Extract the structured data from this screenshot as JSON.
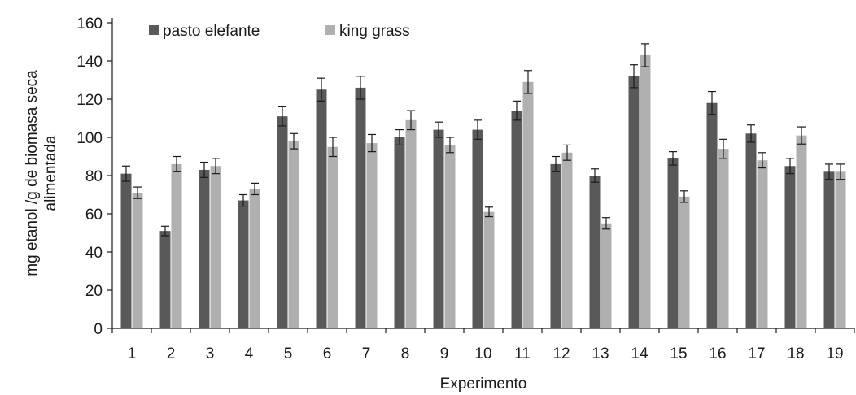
{
  "chart_data": {
    "type": "bar",
    "xlabel": "Experimento",
    "ylabel": [
      "mg etanol /g de biomasa seca",
      "alimentada"
    ],
    "ylim": [
      0,
      160
    ],
    "yticks": [
      "0",
      "20",
      "40",
      "60",
      "80",
      "100",
      "120",
      "140",
      "160"
    ],
    "categories": [
      "1",
      "2",
      "3",
      "4",
      "5",
      "6",
      "7",
      "8",
      "9",
      "10",
      "11",
      "12",
      "13",
      "14",
      "15",
      "16",
      "17",
      "18",
      "19"
    ],
    "legend_position": "top-left",
    "grid": false,
    "series": [
      {
        "name": "pasto elefante",
        "color": "#595959",
        "values": [
          81,
          51,
          83,
          67,
          111,
          125,
          126,
          100,
          104,
          104,
          114,
          86,
          80,
          132,
          89,
          118,
          102,
          85,
          82
        ],
        "errors": [
          4,
          2.5,
          4,
          3,
          5,
          6,
          6,
          4,
          4,
          5,
          5,
          4,
          3.5,
          6,
          3.5,
          6,
          4.5,
          4,
          4
        ]
      },
      {
        "name": "king grass",
        "color": "#b0b0b0",
        "values": [
          71,
          86,
          85,
          73,
          98,
          95,
          97,
          109,
          96,
          61,
          129,
          92,
          55,
          143,
          69,
          94,
          88,
          101,
          82
        ],
        "errors": [
          3,
          4,
          4,
          3,
          4,
          5,
          4.5,
          5,
          4,
          2.5,
          6,
          4,
          3,
          6,
          3,
          5,
          4,
          4.5,
          4
        ]
      }
    ]
  }
}
